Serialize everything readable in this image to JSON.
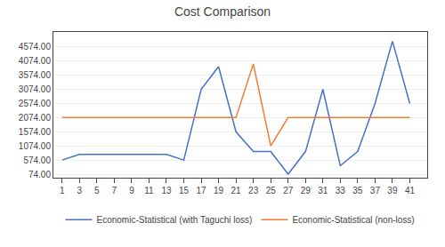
{
  "chart_data": {
    "type": "line",
    "title": "Cost Comparison",
    "x": [
      1,
      3,
      5,
      7,
      9,
      11,
      13,
      15,
      17,
      19,
      21,
      23,
      25,
      27,
      29,
      31,
      33,
      35,
      37,
      39,
      41
    ],
    "series": [
      {
        "name": "Economic-Statistical (with Taguchi loss)",
        "color": "#4472C4",
        "values": [
          574,
          774,
          774,
          774,
          774,
          774,
          774,
          574,
          3074,
          3874,
          1574,
          874,
          874,
          74,
          874,
          3074,
          374,
          874,
          2574,
          4774,
          2574
        ]
      },
      {
        "name": "Economic-Statistical (non-loss)",
        "color": "#ED7D31",
        "values": [
          2074,
          2074,
          2074,
          2074,
          2074,
          2074,
          2074,
          2074,
          2074,
          2074,
          2074,
          3974,
          1074,
          2074,
          2074,
          2074,
          2074,
          2074,
          2074,
          2074,
          2074
        ]
      }
    ],
    "xlim": [
      0.0,
      43
    ],
    "xticks": [
      1,
      3,
      5,
      7,
      9,
      11,
      13,
      15,
      17,
      19,
      21,
      23,
      25,
      27,
      29,
      31,
      33,
      35,
      37,
      39,
      41
    ],
    "ylim": [
      -50,
      5100
    ],
    "yticks": [
      {
        "value": 74,
        "label": "74.00"
      },
      {
        "value": 574,
        "label": "574.00"
      },
      {
        "value": 1074,
        "label": "1074.00"
      },
      {
        "value": 1574,
        "label": "1574.00"
      },
      {
        "value": 2074,
        "label": "2074.00"
      },
      {
        "value": 2574,
        "label": "2574.00"
      },
      {
        "value": 3074,
        "label": "3074.00"
      },
      {
        "value": 3574,
        "label": "3574.00"
      },
      {
        "value": 4074,
        "label": "4074.00"
      },
      {
        "value": 4574,
        "label": "4574.00"
      }
    ],
    "grid": "y",
    "legend": "bottom"
  }
}
